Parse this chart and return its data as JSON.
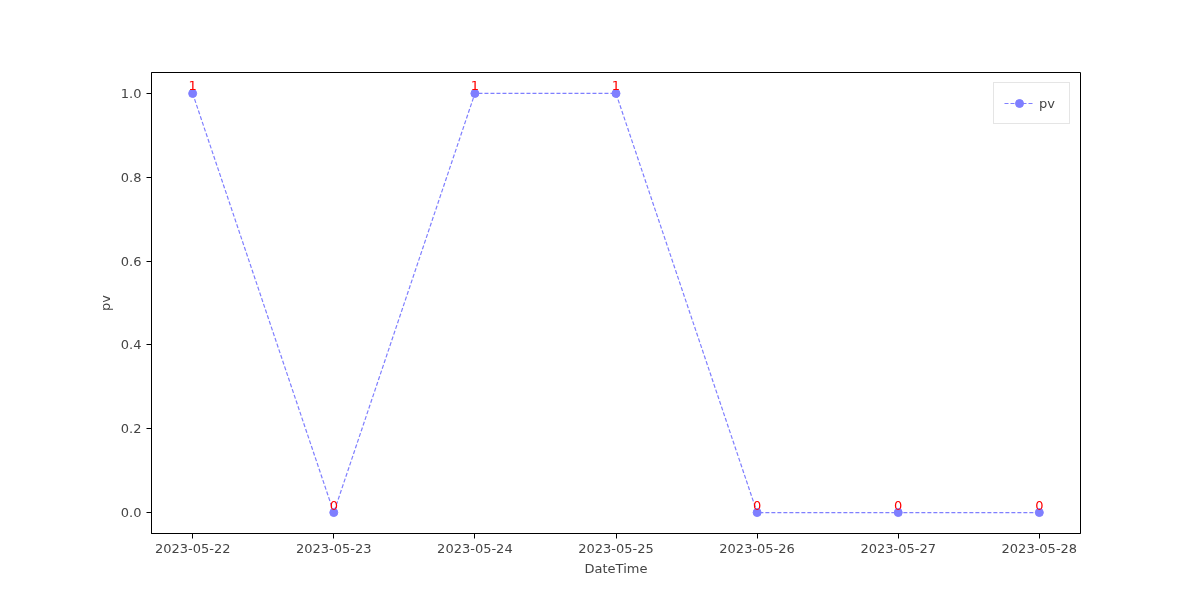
{
  "chart_data": {
    "type": "line",
    "xlabel": "DateTime",
    "ylabel": "pv",
    "x": [
      "2023-05-22",
      "2023-05-23",
      "2023-05-24",
      "2023-05-25",
      "2023-05-26",
      "2023-05-27",
      "2023-05-28"
    ],
    "series": [
      {
        "name": "pv",
        "color": "#7f7fff",
        "values": [
          1,
          0,
          1,
          1,
          0,
          0,
          0
        ]
      }
    ],
    "xlim": [
      "2023-05-21T17:00",
      "2023-05-28T07:00"
    ],
    "xticks": [
      "2023-05-22",
      "2023-05-23",
      "2023-05-24",
      "2023-05-25",
      "2023-05-26",
      "2023-05-27",
      "2023-05-28"
    ],
    "ylim": [
      -0.05,
      1.05
    ],
    "yticks": [
      {
        "value": 0,
        "label": "0.0"
      },
      {
        "value": 0.2,
        "label": "0.2"
      },
      {
        "value": 0.4,
        "label": "0.4"
      },
      {
        "value": 0.6,
        "label": "0.6"
      },
      {
        "value": 0.8,
        "label": "0.8"
      },
      {
        "value": 1,
        "label": "1.0"
      }
    ],
    "data_labels": true,
    "legend": "top right",
    "marker": "circle",
    "line_style": "dashed",
    "grid": false
  }
}
